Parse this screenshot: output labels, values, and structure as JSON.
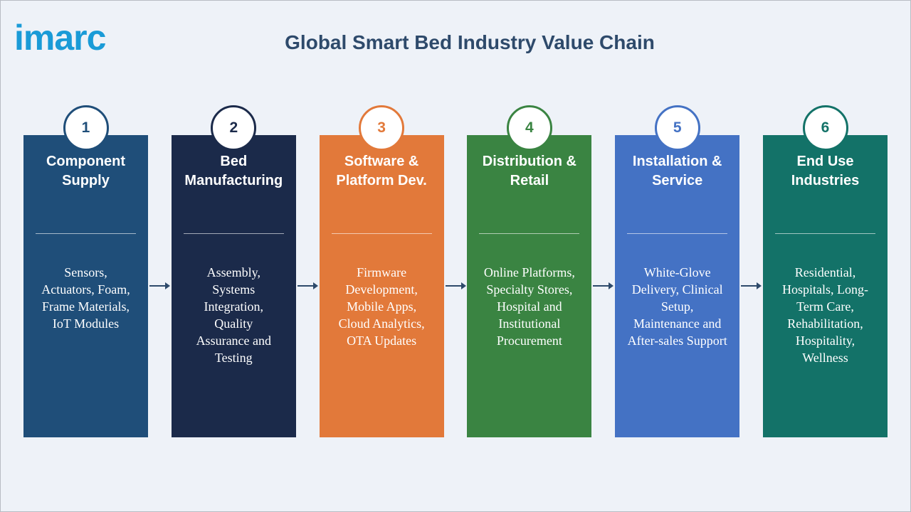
{
  "header": {
    "logo": "imarc",
    "title": "Global Smart Bed Industry Value Chain"
  },
  "steps": [
    {
      "number": "1",
      "color": "#1f4e79",
      "title": [
        "Component",
        "Supply"
      ],
      "description": [
        "Sensors,",
        "Actuators, Foam,",
        "Frame Materials,",
        "IoT Modules"
      ]
    },
    {
      "number": "2",
      "color": "#1b2a4a",
      "title": [
        "Bed",
        "Manufacturing"
      ],
      "description": [
        "Assembly,",
        "Systems",
        "Integration,",
        "Quality",
        "Assurance and",
        "Testing"
      ]
    },
    {
      "number": "3",
      "color": "#e2793a",
      "title": [
        "Software &",
        "Platform Dev."
      ],
      "description": [
        "Firmware",
        "Development,",
        "Mobile Apps,",
        "Cloud Analytics,",
        "OTA Updates"
      ]
    },
    {
      "number": "4",
      "color": "#3a8442",
      "title": [
        "Distribution &",
        "Retail"
      ],
      "description": [
        "Online Platforms,",
        "Specialty Stores,",
        "Hospital and",
        "Institutional",
        "Procurement"
      ]
    },
    {
      "number": "5",
      "color": "#4472c4",
      "title": [
        "Installation &",
        "Service"
      ],
      "description": [
        "White-Glove",
        "Delivery, Clinical",
        "Setup,",
        "Maintenance and",
        "After-sales Support"
      ]
    },
    {
      "number": "6",
      "color": "#137268",
      "title": [
        "End Use",
        "Industries"
      ],
      "description": [
        "Residential,",
        "Hospitals, Long-",
        "Term Care,",
        "Rehabilitation,",
        "Hospitality,",
        "Wellness"
      ]
    }
  ]
}
